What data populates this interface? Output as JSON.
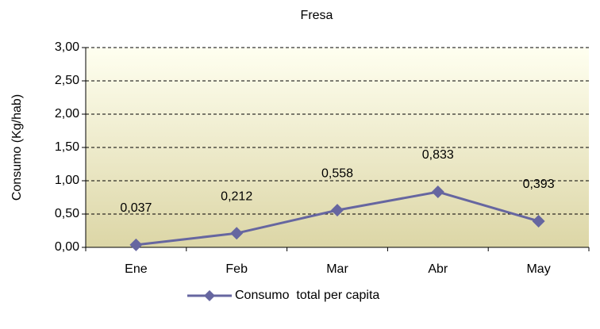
{
  "chart_data": {
    "type": "line",
    "title": "Fresa",
    "y_label": "Consumo (Kg/hab)",
    "categories": [
      "Ene",
      "Feb",
      "Mar",
      "Abr",
      "May"
    ],
    "series": [
      {
        "name": "Consumo  total per capita",
        "color": "#6666a0",
        "values": [
          0.037,
          0.212,
          0.558,
          0.833,
          0.393
        ],
        "value_labels": [
          "0,037",
          "0,212",
          "0,558",
          "0,833",
          "0,393"
        ]
      }
    ],
    "ylim": [
      0,
      3
    ],
    "yticks": [
      {
        "value": 0,
        "label": "0,00"
      },
      {
        "value": 0.5,
        "label": "0,50"
      },
      {
        "value": 1,
        "label": "1,00"
      },
      {
        "value": 1.5,
        "label": "1,50"
      },
      {
        "value": 2,
        "label": "2,00"
      },
      {
        "value": 2.5,
        "label": "2,50"
      },
      {
        "value": 3,
        "label": "3,00"
      }
    ],
    "grid": true,
    "legend": "bottom"
  }
}
